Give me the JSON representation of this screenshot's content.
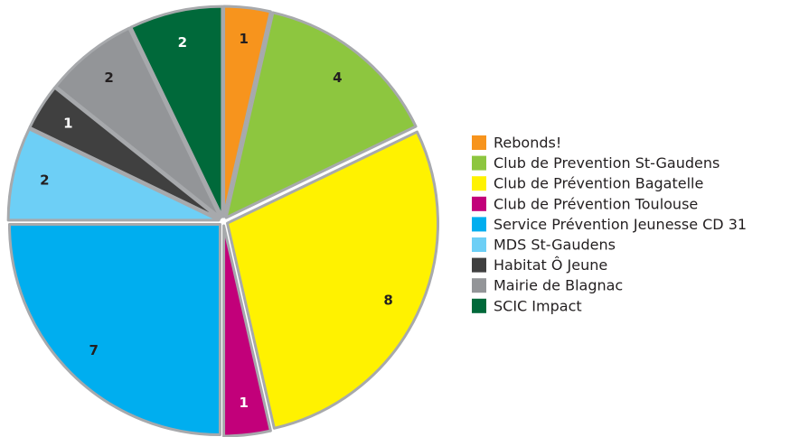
{
  "chart_data": {
    "type": "pie",
    "categories": [
      "Rebonds!",
      "Club de Prevention St-Gaudens",
      "Club de Prévention Bagatelle",
      "Club de Prévention Toulouse",
      "Service Prévention Jeunesse CD 31",
      "MDS St-Gaudens",
      "Habitat Ô Jeune",
      "Mairie de Blagnac",
      "SCIC Impact"
    ],
    "values": [
      1,
      4,
      8,
      1,
      7,
      2,
      1,
      2,
      2
    ],
    "colors": [
      "#f7941d",
      "#8dc63f",
      "#fff200",
      "#c2007a",
      "#00aeef",
      "#6dcff6",
      "#404040",
      "#939598",
      "#00693a"
    ],
    "legend": "right"
  }
}
